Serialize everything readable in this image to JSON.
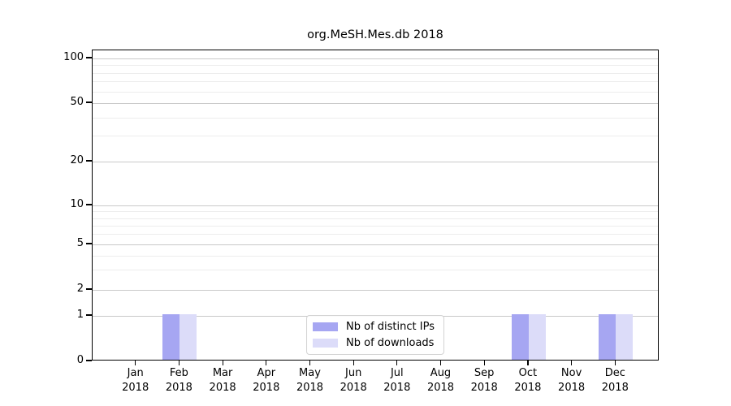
{
  "title": "org.MeSH.Mes.db 2018",
  "chart_data": {
    "type": "bar",
    "title": "org.MeSH.Mes.db 2018",
    "categories": [
      {
        "month": "Jan",
        "year": "2018"
      },
      {
        "month": "Feb",
        "year": "2018"
      },
      {
        "month": "Mar",
        "year": "2018"
      },
      {
        "month": "Apr",
        "year": "2018"
      },
      {
        "month": "May",
        "year": "2018"
      },
      {
        "month": "Jun",
        "year": "2018"
      },
      {
        "month": "Jul",
        "year": "2018"
      },
      {
        "month": "Aug",
        "year": "2018"
      },
      {
        "month": "Sep",
        "year": "2018"
      },
      {
        "month": "Oct",
        "year": "2018"
      },
      {
        "month": "Nov",
        "year": "2018"
      },
      {
        "month": "Dec",
        "year": "2018"
      }
    ],
    "series": [
      {
        "name": "Nb of distinct IPs",
        "color": "#a6a6f2",
        "values": [
          0,
          1,
          0,
          0,
          0,
          0,
          0,
          0,
          0,
          1,
          0,
          1
        ]
      },
      {
        "name": "Nb of downloads",
        "color": "#dcdcf9",
        "values": [
          0,
          1,
          0,
          0,
          0,
          0,
          0,
          0,
          0,
          1,
          0,
          1
        ]
      }
    ],
    "y_axis": {
      "scale": "symlog",
      "ticks": [
        0,
        1,
        2,
        5,
        10,
        20,
        50,
        100
      ],
      "minor_gridlines": [
        3,
        4,
        6,
        7,
        8,
        9,
        30,
        40,
        60,
        70,
        80,
        90
      ],
      "range": [
        0,
        110
      ]
    },
    "xlabel": "",
    "ylabel": "",
    "grid": true,
    "legend_position": "lower center"
  }
}
